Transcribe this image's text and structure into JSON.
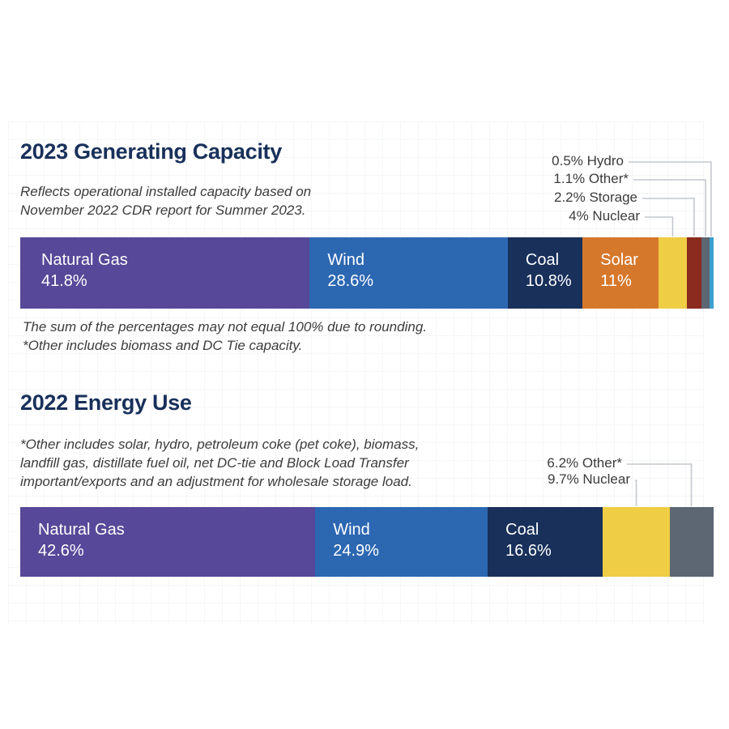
{
  "chart_data": [
    {
      "type": "bar",
      "title": "2023 Generating Capacity",
      "subtitle_lines": [
        "Reflects operational installed capacity based on",
        "November 2022 CDR report for Summer 2023."
      ],
      "segments": [
        {
          "name": "Natural Gas",
          "value": 41.8,
          "label": "41.8%",
          "color": "#574899"
        },
        {
          "name": "Wind",
          "value": 28.6,
          "label": "28.6%",
          "color": "#2c67b2"
        },
        {
          "name": "Coal",
          "value": 10.8,
          "label": "10.8%",
          "color": "#18305a"
        },
        {
          "name": "Solar",
          "value": 11,
          "label": "11%",
          "color": "#d6782b"
        },
        {
          "name": "Nuclear",
          "value": 4,
          "label": "4% Nuclear",
          "color": "#efcd45"
        },
        {
          "name": "Storage",
          "value": 2.2,
          "label": "2.2% Storage",
          "color": "#8b2a1e"
        },
        {
          "name": "Other*",
          "value": 1.1,
          "label": "1.1% Other*",
          "color": "#5d6673"
        },
        {
          "name": "Hydro",
          "value": 0.5,
          "label": "0.5% Hydro",
          "color": "#3ba0d0"
        }
      ],
      "notes": [
        "The sum of the percentages may not equal 100% due to rounding.",
        "*Other includes biomass and DC Tie capacity."
      ]
    },
    {
      "type": "bar",
      "title": "2022 Energy Use",
      "subtitle_lines": [
        "*Other includes solar, hydro, petroleum coke (pet coke), biomass,",
        "landfill gas, distillate fuel oil, net DC-tie and Block Load Transfer",
        "important/exports and an adjustment for wholesale storage load."
      ],
      "segments": [
        {
          "name": "Natural Gas",
          "value": 42.6,
          "label": "42.6%",
          "color": "#574899"
        },
        {
          "name": "Wind",
          "value": 24.9,
          "label": "24.9%",
          "color": "#2c67b2"
        },
        {
          "name": "Coal",
          "value": 16.6,
          "label": "16.6%",
          "color": "#18305a"
        },
        {
          "name": "Nuclear",
          "value": 9.7,
          "label": "9.7% Nuclear",
          "color": "#efcd45"
        },
        {
          "name": "Other*",
          "value": 6.2,
          "label": "6.2% Other*",
          "color": "#5d6673"
        }
      ],
      "notes": []
    }
  ]
}
